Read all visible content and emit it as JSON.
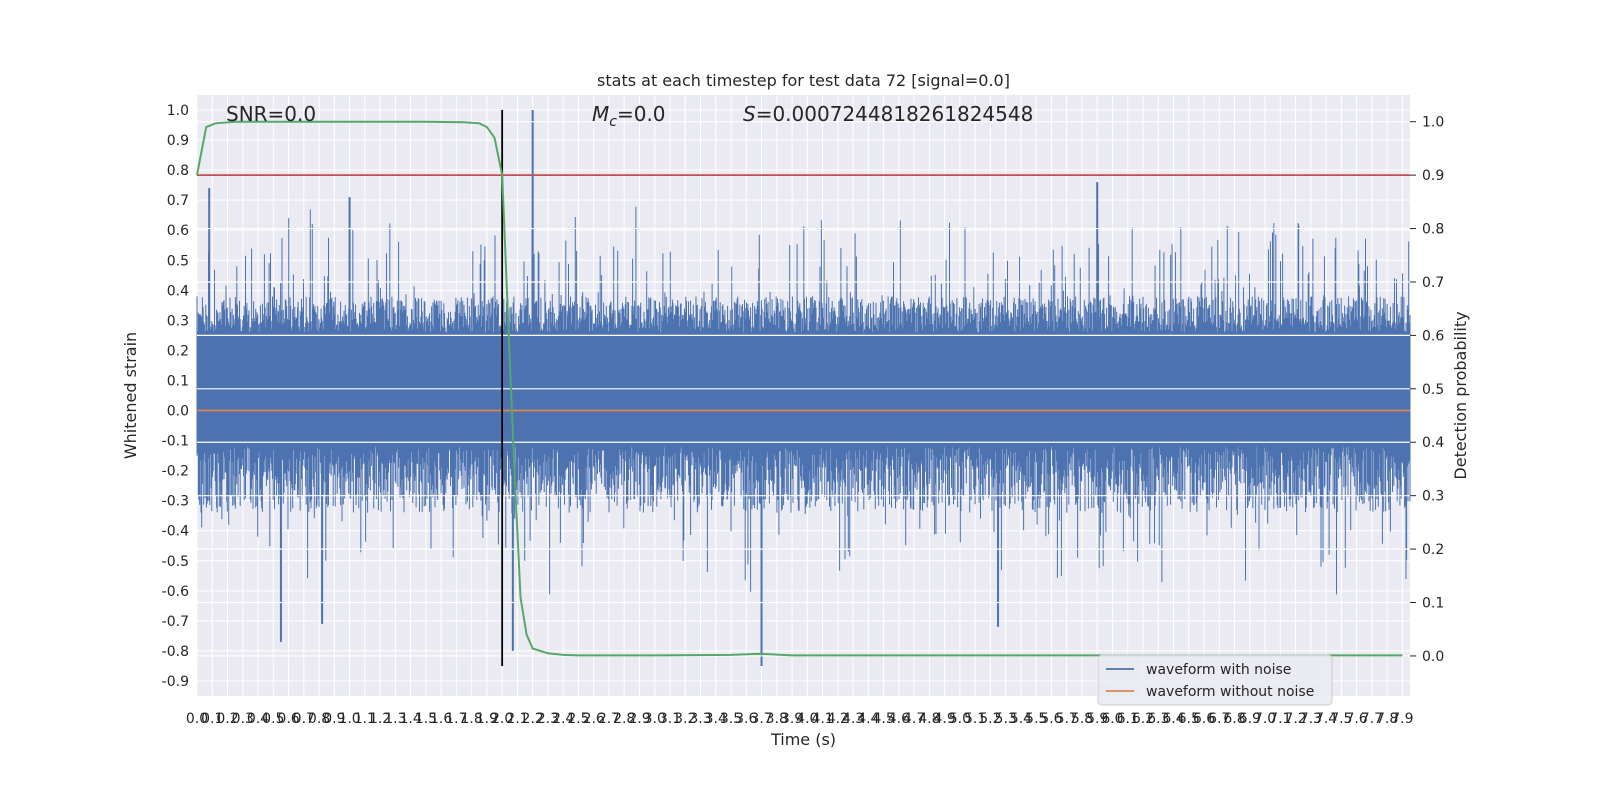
{
  "chart_data": {
    "type": "line",
    "title": "stats at each timestep for test data 72 [signal=0.0]",
    "xlabel": "Time (s)",
    "ylabel": "Whitened strain",
    "y2label": "Detection probability",
    "xlim": [
      0.0,
      7.95
    ],
    "ylim": [
      -0.95,
      1.05
    ],
    "y2lim": [
      -0.075,
      1.05
    ],
    "x_tick_step": 0.1,
    "x_tick_labels": [
      "0.0",
      "0.1",
      "0.2",
      "0.3",
      "0.4",
      "0.5",
      "0.6",
      "0.7",
      "0.8",
      "0.9",
      "1.0",
      "1.1",
      "1.2",
      "1.3",
      "1.4",
      "1.5",
      "1.6",
      "1.7",
      "1.8",
      "1.9",
      "2.0",
      "2.1",
      "2.2",
      "2.3",
      "2.4",
      "2.5",
      "2.6",
      "2.7",
      "2.8",
      "2.9",
      "3.0",
      "3.1",
      "3.2",
      "3.3",
      "3.4",
      "3.5",
      "3.6",
      "3.7",
      "3.8",
      "3.9",
      "4.0",
      "4.1",
      "4.2",
      "4.3",
      "4.4",
      "4.5",
      "4.6",
      "4.7",
      "4.8",
      "4.9",
      "5.0",
      "5.1",
      "5.2",
      "5.3",
      "5.4",
      "5.5",
      "5.6",
      "5.7",
      "5.8",
      "5.9",
      "6.0",
      "6.1",
      "6.2",
      "6.3",
      "6.4",
      "6.5",
      "6.6",
      "6.7",
      "6.8",
      "6.9",
      "7.0",
      "7.1",
      "7.2",
      "7.3",
      "7.4",
      "7.5",
      "7.6",
      "7.7",
      "7.8",
      "7.9"
    ],
    "y_tick_labels": [
      "1.0",
      "0.9",
      "0.8",
      "0.7",
      "0.6",
      "0.5",
      "0.4",
      "0.3",
      "0.2",
      "0.1",
      "0.0",
      "-0.1",
      "-0.2",
      "-0.3",
      "-0.4",
      "-0.5",
      "-0.6",
      "-0.7",
      "-0.8",
      "-0.9"
    ],
    "y2_tick_labels": [
      "1.0",
      "0.9",
      "0.8",
      "0.7",
      "0.6",
      "0.5",
      "0.4",
      "0.3",
      "0.2",
      "0.1",
      "0.0"
    ],
    "annotations": {
      "snr": "SNR=0.0",
      "mc": "=0.0",
      "mc_symbol": "M",
      "mc_subscript": "c",
      "s": "=0.0007244818261824548",
      "s_symbol": "S"
    },
    "series": [
      {
        "name": "waveform with noise",
        "color": "#4c72b0",
        "axis": "left",
        "note": "dense noise, typical envelope ~±0.3 with peaks to 1.0 and -0.85",
        "peaks": [
          {
            "x": 0.08,
            "y": 0.74
          },
          {
            "x": 0.55,
            "y": -0.77
          },
          {
            "x": 0.82,
            "y": -0.71
          },
          {
            "x": 1.0,
            "y": 0.71
          },
          {
            "x": 2.2,
            "y": 1.0
          },
          {
            "x": 2.07,
            "y": -0.8
          },
          {
            "x": 3.7,
            "y": -0.85
          },
          {
            "x": 5.25,
            "y": -0.72
          },
          {
            "x": 5.9,
            "y": 0.76
          }
        ]
      },
      {
        "name": "waveform without noise",
        "color": "#dd8452",
        "axis": "left",
        "x": [
          0.0,
          7.95
        ],
        "y": [
          0.0,
          0.0
        ]
      },
      {
        "name": "",
        "color": "#55a868",
        "axis": "right",
        "x": [
          0.0,
          0.06,
          0.12,
          0.25,
          0.5,
          1.0,
          1.5,
          1.75,
          1.85,
          1.9,
          1.95,
          2.0,
          2.04,
          2.08,
          2.12,
          2.16,
          2.2,
          2.3,
          2.4,
          2.5,
          3.0,
          3.5,
          3.7,
          3.9,
          5.0,
          6.0,
          7.0,
          7.9
        ],
        "y": [
          0.9,
          0.99,
          0.997,
          1.0,
          1.0,
          1.0,
          1.0,
          0.999,
          0.997,
          0.99,
          0.97,
          0.9,
          0.62,
          0.35,
          0.11,
          0.04,
          0.014,
          0.005,
          0.002,
          0.001,
          0.001,
          0.002,
          0.004,
          0.001,
          0.001,
          0.001,
          0.001,
          0.001
        ]
      }
    ],
    "threshold": {
      "axis": "right",
      "y": 0.9,
      "color": "#c44e52"
    },
    "vertical_marker": {
      "x": 2.0,
      "y_from": -0.85,
      "y_to": 1.0,
      "color": "#000000"
    },
    "legend": {
      "placement": "lower-right",
      "entries": [
        {
          "label": "waveform with noise",
          "color": "#4c72b0"
        },
        {
          "label": "waveform without noise",
          "color": "#dd8452"
        }
      ]
    },
    "background": "#eaeaf2",
    "grid": true
  }
}
